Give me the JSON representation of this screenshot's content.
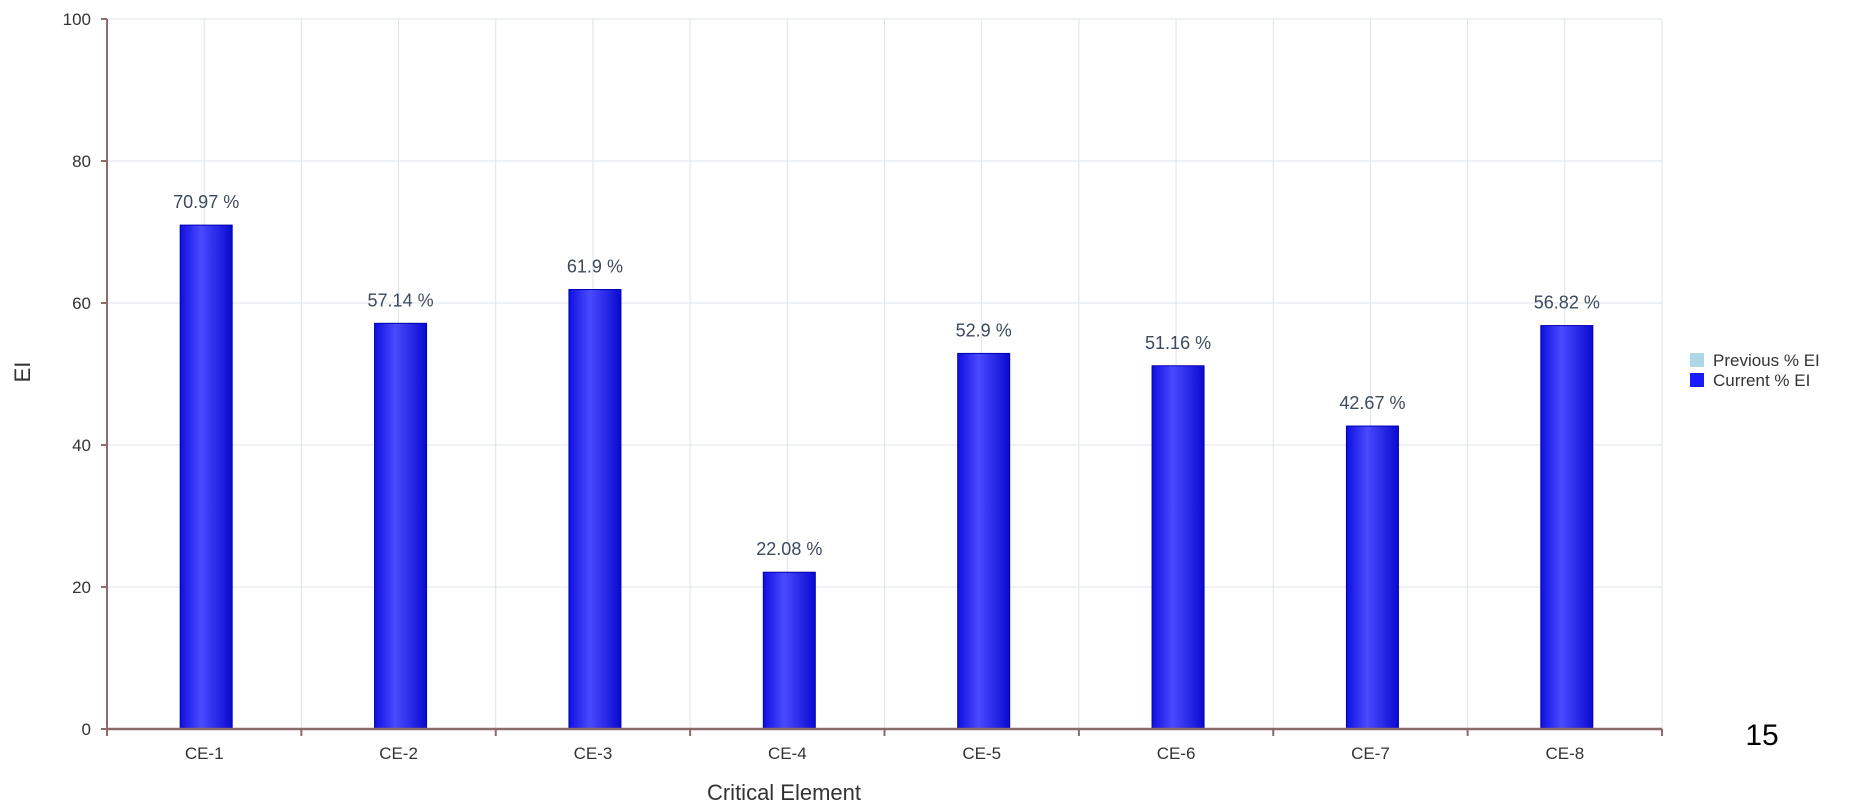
{
  "chart_data": {
    "type": "bar",
    "categories": [
      "CE-1",
      "CE-2",
      "CE-3",
      "CE-4",
      "CE-5",
      "CE-6",
      "CE-7",
      "CE-8"
    ],
    "series": [
      {
        "name": "Previous % EI",
        "values": [
          null,
          null,
          null,
          null,
          null,
          null,
          null,
          null
        ],
        "color": "#add8e6"
      },
      {
        "name": "Current % EI",
        "values": [
          70.97,
          57.14,
          61.9,
          22.08,
          52.9,
          51.16,
          42.67,
          56.82
        ],
        "color": "#1a1aff"
      }
    ],
    "data_labels": [
      "70.97 %",
      "57.14 %",
      "61.9 %",
      "22.08 %",
      "52.9 %",
      "51.16 %",
      "42.67 %",
      "56.82 %"
    ],
    "xlabel": "Critical Element",
    "ylabel": "EI",
    "ylim": [
      0,
      100
    ],
    "yticks": [
      0,
      20,
      40,
      60,
      80,
      100
    ],
    "grid": true,
    "legend_position": "right"
  },
  "slide_number": "15",
  "colors": {
    "bar": "#1a1aff",
    "grid": "#dde3ec",
    "axis": "#8b6b6b"
  }
}
